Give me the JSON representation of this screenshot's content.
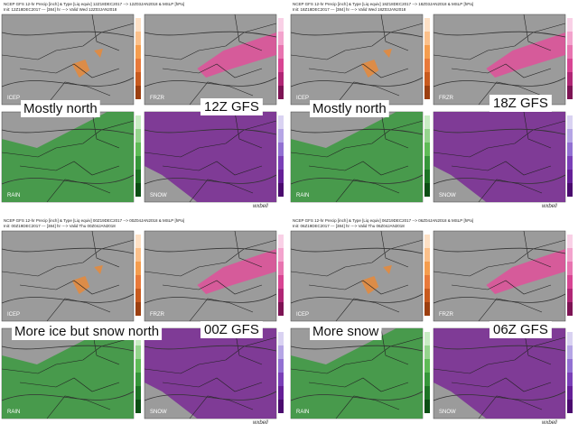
{
  "panels": [
    {
      "header": [
        "NCEP GFS 12-hr Precip [inch] & Type [Liq equiv] 12Z18DEC2017 --> 12Z03JAN2018 & MSLP [hPa]",
        "Init: 12Z18DEC2017 --- [384] hr ---> Valid Wed 12Z03JAN2018"
      ],
      "maps": [
        "ICEP",
        "FRZR",
        "RAIN",
        "SNOW"
      ],
      "caption_left": "Mostly north",
      "caption_right": "12Z GFS",
      "watermark": "wxbell"
    },
    {
      "header": [
        "NCEP GFS 12-hr Precip [inch] & Type [Liq equiv] 18Z18DEC2017 --> 18Z03JAN2018 & MSLP [hPa]",
        "Init: 18Z18DEC2017 --- [384] hr ---> Valid Wed 18Z03JAN2018"
      ],
      "maps": [
        "ICEP",
        "FRZR",
        "RAIN",
        "SNOW"
      ],
      "caption_left": "Mostly north",
      "caption_right": "18Z GFS",
      "watermark": "wxbell"
    },
    {
      "header": [
        "NCEP GFS 12-hr Precip [inch] & Type [Liq equiv] 00Z19DEC2017 --> 00Z04JAN2018 & MSLP [hPa]",
        "Init: 00Z19DEC2017 --- [384] hr ---> Valid Thu 00Z04JAN2018"
      ],
      "maps": [
        "ICEP",
        "FRZR",
        "RAIN",
        "SNOW"
      ],
      "caption_left": "More ice but snow north",
      "caption_right": "00Z GFS",
      "watermark": "wxbell"
    },
    {
      "header": [
        "NCEP GFS 12-hr Precip [inch] & Type [Liq equiv] 06Z19DEC2017 --> 06Z04JAN2018 & MSLP [hPa]",
        "Init: 06Z19DEC2017 --- [384] hr ---> Valid Thu 06Z04JAN2018"
      ],
      "maps": [
        "ICEP",
        "FRZR",
        "RAIN",
        "SNOW"
      ],
      "caption_left": "More snow",
      "caption_right": "06Z GFS",
      "watermark": "wxbell"
    }
  ]
}
